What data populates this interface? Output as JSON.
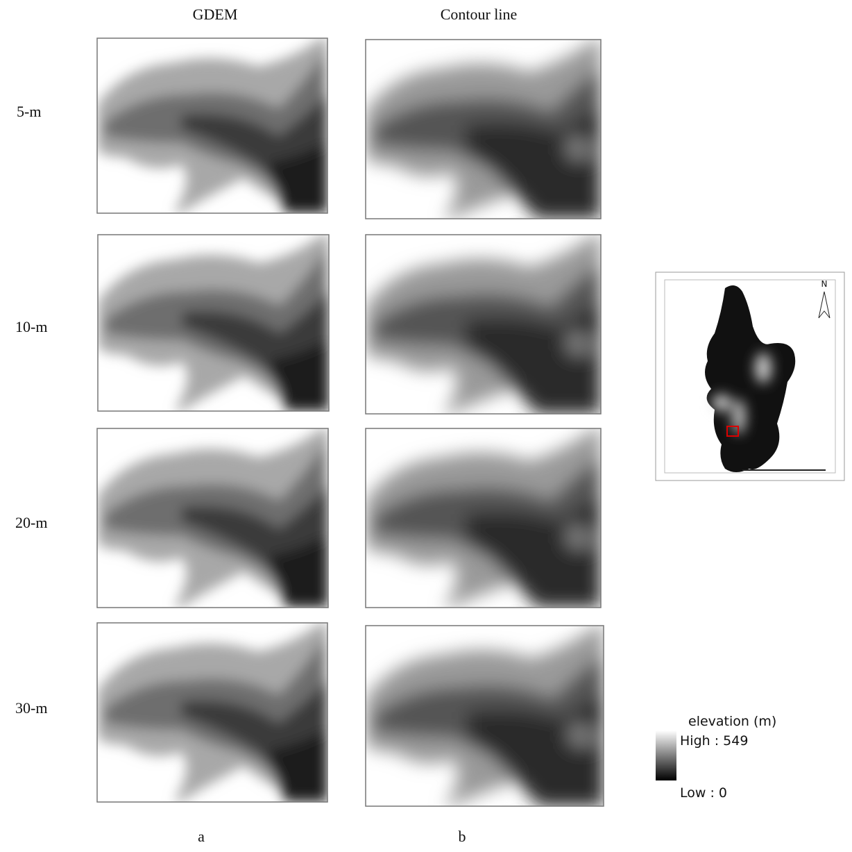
{
  "columns": [
    {
      "title": "GDEM",
      "label": "a"
    },
    {
      "title": "Contour line",
      "label": "b"
    }
  ],
  "rows": [
    "5-m",
    "10-m",
    "20-m",
    "30-m"
  ],
  "legend": {
    "title": "elevation (m)",
    "high": "High : 549",
    "low": "Low : 0"
  },
  "inset": {
    "north": "N"
  }
}
